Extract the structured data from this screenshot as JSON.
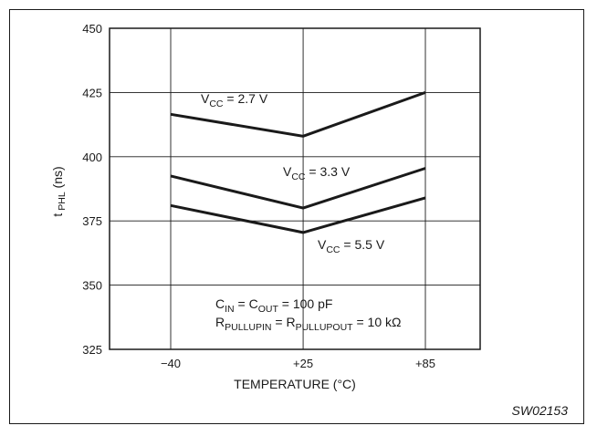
{
  "chart_data": {
    "type": "line",
    "x_categories": [
      "−40",
      "+25",
      "+85"
    ],
    "x_values": [
      -40,
      25,
      85
    ],
    "xlabel": "TEMPERATURE (°C)",
    "ylabel": {
      "main": "t",
      "sub": "PHL",
      "unit": " (ns)"
    },
    "ylim": [
      325,
      450
    ],
    "yticks": [
      325,
      350,
      375,
      400,
      425,
      450
    ],
    "grid": true,
    "series": [
      {
        "name": "V_CC = 2.7 V",
        "label_main": "V",
        "label_sub": "CC",
        "label_rest": " = 2.7 V",
        "values": [
          416.5,
          408,
          425
        ]
      },
      {
        "name": "V_CC = 3.3 V",
        "label_main": "V",
        "label_sub": "CC",
        "label_rest": " = 3.3 V",
        "values": [
          392.5,
          380,
          395.5
        ]
      },
      {
        "name": "V_CC = 5.5 V",
        "label_main": "V",
        "label_sub": "CC",
        "label_rest": " = 5.5 V",
        "values": [
          381,
          370.5,
          384
        ]
      }
    ],
    "annotations": {
      "cap_line": {
        "p1": "C",
        "s1": "IN",
        "p2": " = C",
        "s2": "OUT",
        "p3": " = 100 pF"
      },
      "res_line": {
        "p1": "R",
        "s1": "PULLUPIN",
        "p2": " = R",
        "s2": "PULLUPOUT",
        "p3": " = 10 kΩ"
      }
    },
    "reference": "SW02153"
  }
}
